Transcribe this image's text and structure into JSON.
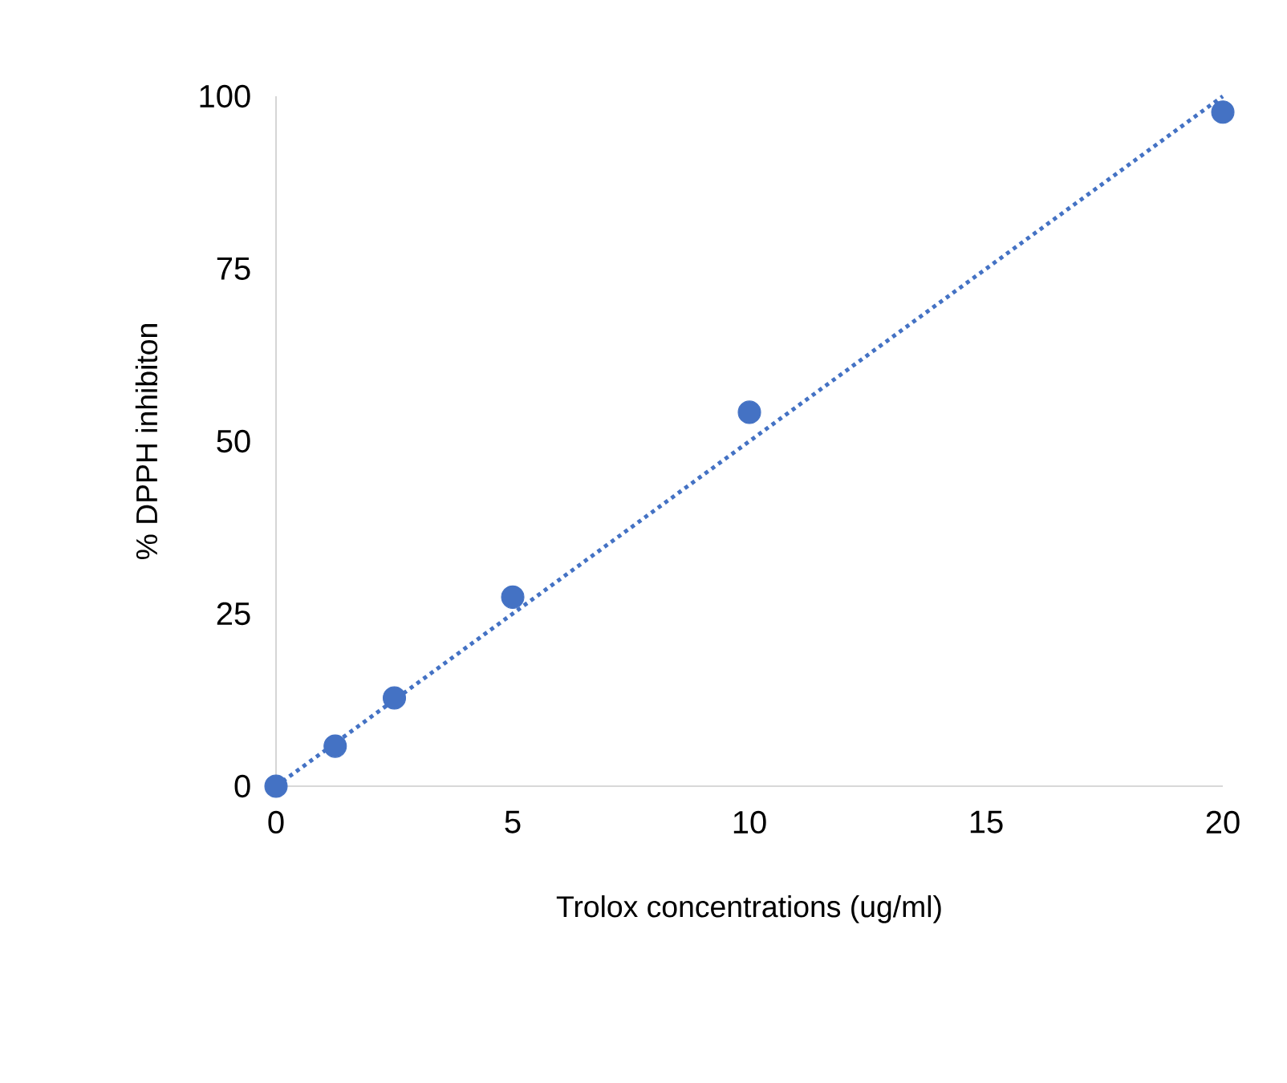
{
  "chart_data": {
    "type": "scatter",
    "xlabel": "Trolox concentrations (ug/ml)",
    "ylabel": "% DPPH inhibiton",
    "xlim": [
      0,
      20
    ],
    "ylim": [
      0,
      100
    ],
    "xticks": [
      0,
      5,
      10,
      15,
      20
    ],
    "yticks": [
      0,
      25,
      50,
      75,
      100
    ],
    "grid": false,
    "series": [
      {
        "color": "#4472c4",
        "marker": "circle",
        "x": [
          0,
          1.25,
          2.5,
          5,
          10,
          20
        ],
        "values": [
          0,
          5.8,
          12.8,
          27.4,
          54.2,
          97.7
        ]
      },
      {
        "type": "line",
        "color": "#4472c4",
        "line_style": "dotted",
        "marker": "none",
        "x": [
          0,
          20
        ],
        "values": [
          0,
          100
        ]
      }
    ]
  }
}
